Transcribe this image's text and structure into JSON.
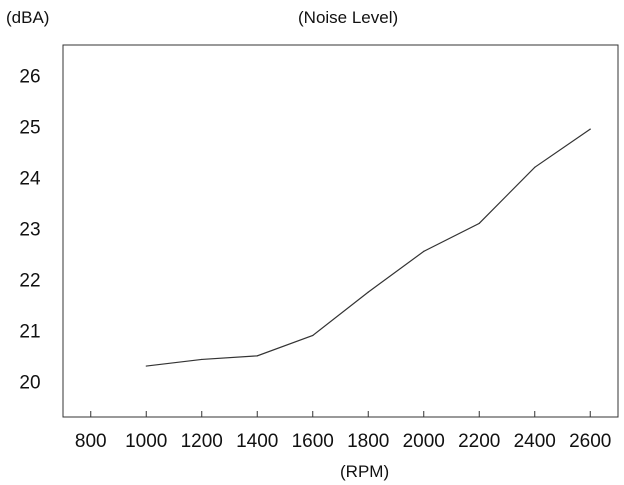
{
  "chart_data": {
    "type": "line",
    "title": "(Noise Level)",
    "ylabel": "(dBA)",
    "xlabel": "(RPM)",
    "x_ticks": [
      800,
      1000,
      1200,
      1400,
      1600,
      1800,
      2000,
      2200,
      2400,
      2600
    ],
    "y_ticks": [
      20,
      21,
      22,
      23,
      24,
      25,
      26
    ],
    "xlim": [
      700,
      2700
    ],
    "ylim": [
      19.3,
      26.6
    ],
    "grid": false,
    "series": [
      {
        "x": [
          1000,
          1200,
          1400,
          1600,
          1800,
          2000,
          2200,
          2400,
          2600
        ],
        "values": [
          20.3,
          20.43,
          20.5,
          20.9,
          21.75,
          22.55,
          23.1,
          24.2,
          24.95
        ]
      }
    ],
    "line_color": "#333333"
  }
}
